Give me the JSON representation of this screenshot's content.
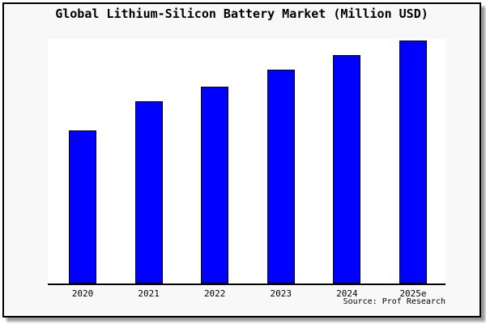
{
  "chart_data": {
    "type": "bar",
    "title": "Global Lithium-Silicon Battery Market (Million USD)",
    "categories": [
      "2020",
      "2021",
      "2022",
      "2023",
      "2024",
      "2025e"
    ],
    "values": [
      63,
      75,
      81,
      88,
      94,
      100
    ],
    "xlabel": "",
    "ylabel": "",
    "ylim": [
      0,
      100.5
    ],
    "yaxis_tick_labels_visible": false,
    "grid": false,
    "legend": "none",
    "source": "Source: Prof Research",
    "colors": {
      "bar_fill": "#0000ff",
      "bar_edge": "#000000",
      "plot_background": "#ffffff",
      "frame_background": "#f8f8f8",
      "frame_border": "#000000",
      "axis_line": "#000000",
      "shadow": "#9a9a9a",
      "text": "#000000"
    }
  }
}
